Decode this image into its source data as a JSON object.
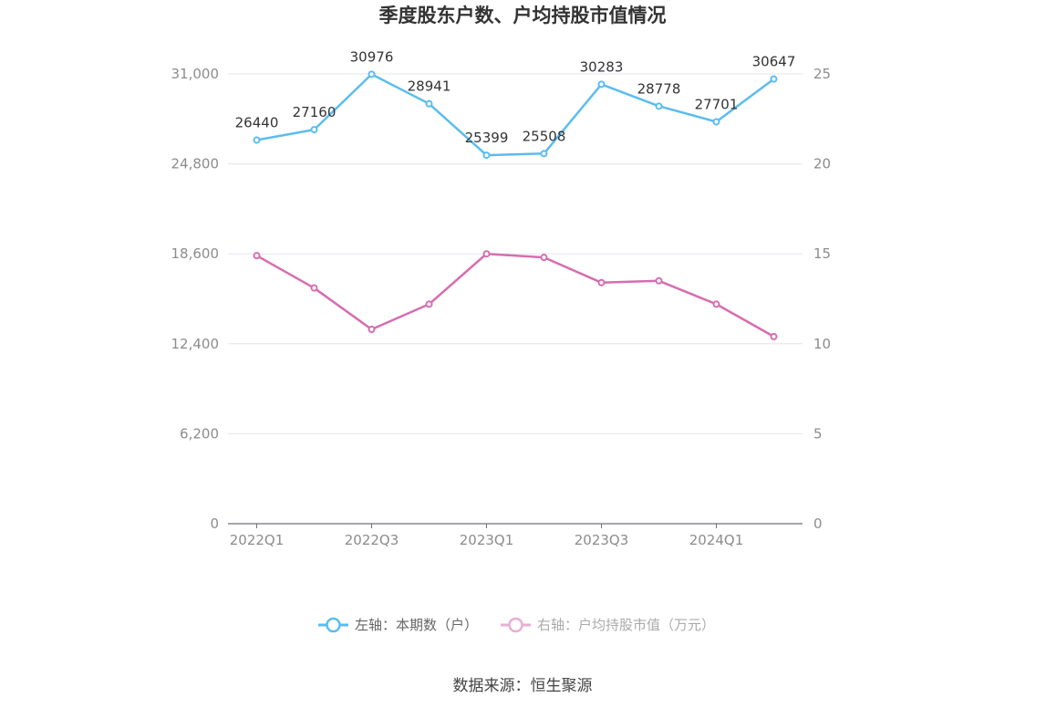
{
  "chart_data": {
    "type": "line",
    "title": "季度股东户数、户均持股市值情况",
    "categories": [
      "2022Q1",
      "2022Q2",
      "2022Q3",
      "2022Q4",
      "2023Q1",
      "2023Q2",
      "2023Q3",
      "2023Q4",
      "2024Q1",
      "2024Q2"
    ],
    "x_tick_labels": [
      "2022Q1",
      "2022Q3",
      "2023Q1",
      "2023Q3",
      "2024Q1"
    ],
    "series": [
      {
        "name": "左轴：本期数（户）",
        "axis": "left",
        "color": "#5bbdee",
        "values": [
          26440,
          27160,
          30976,
          28941,
          25399,
          25508,
          30283,
          28778,
          27701,
          30647
        ],
        "data_labels": [
          "26440",
          "27160",
          "30976",
          "28941",
          "25399",
          "25508",
          "30283",
          "28778",
          "27701",
          "30647"
        ]
      },
      {
        "name": "右轴：户均持股市值（万元）",
        "axis": "right",
        "color": "#d66db0",
        "values": [
          14.9,
          13.1,
          10.8,
          12.2,
          15.0,
          14.8,
          13.4,
          13.5,
          12.2,
          10.4
        ]
      }
    ],
    "left_axis": {
      "ylim": [
        0,
        31000
      ],
      "ticks": [
        "0",
        "6,200",
        "12,400",
        "18,600",
        "24,800",
        "31,000"
      ]
    },
    "right_axis": {
      "ylim": [
        0,
        25
      ],
      "ticks": [
        "0",
        "5",
        "10",
        "15",
        "20",
        "25"
      ]
    },
    "grid": true,
    "legend_position": "bottom"
  },
  "source": "数据来源：恒生聚源"
}
